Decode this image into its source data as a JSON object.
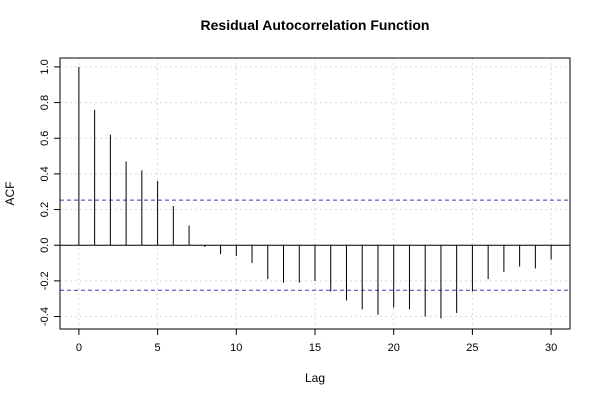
{
  "chart_data": {
    "type": "bar",
    "title": "Residual Autocorrelation Function",
    "xlabel": "Lag",
    "ylabel": "ACF",
    "xlim": [
      -1.2,
      31.2
    ],
    "ylim": [
      -0.47,
      1.05
    ],
    "x_ticks": [
      0,
      5,
      10,
      15,
      20,
      25,
      30
    ],
    "y_ticks": [
      -0.4,
      -0.2,
      0.0,
      0.2,
      0.4,
      0.6,
      0.8,
      1.0
    ],
    "y_tick_labels": [
      "-0.4",
      "-0.2",
      "0.0",
      "0.2",
      "0.4",
      "0.6",
      "0.8",
      "1.0"
    ],
    "grid": true,
    "confidence_bound": 0.253,
    "colors": {
      "bars": "#000000",
      "confidence": "#3b3bb5",
      "grid": "#d9d9d9",
      "axis": "#000000"
    },
    "x": [
      0,
      1,
      2,
      3,
      4,
      5,
      6,
      7,
      8,
      9,
      10,
      11,
      12,
      13,
      14,
      15,
      16,
      17,
      18,
      19,
      20,
      21,
      22,
      23,
      24,
      25,
      26,
      27,
      28,
      29,
      30
    ],
    "values": [
      1.0,
      0.76,
      0.62,
      0.47,
      0.42,
      0.36,
      0.22,
      0.11,
      -0.01,
      -0.05,
      -0.06,
      -0.1,
      -0.19,
      -0.21,
      -0.21,
      -0.2,
      -0.26,
      -0.31,
      -0.36,
      -0.39,
      -0.35,
      -0.36,
      -0.4,
      -0.41,
      -0.38,
      -0.26,
      -0.19,
      -0.15,
      -0.12,
      -0.13,
      -0.08
    ]
  }
}
